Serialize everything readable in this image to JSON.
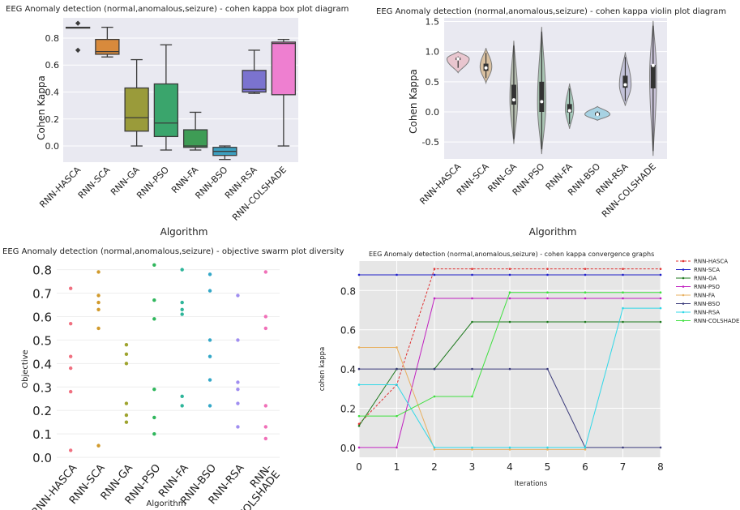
{
  "chart_data": [
    {
      "id": "box",
      "type": "box",
      "title": "EEG Anomaly detection (normal,anomalous,seizure) - cohen kappa box plot diagram",
      "xlabel": "Algorithm",
      "ylabel": "Cohen Kappa",
      "ylim": [
        -0.12,
        0.95
      ],
      "yticks": [
        0.0,
        0.2,
        0.4,
        0.6,
        0.8
      ],
      "ytick_labels": [
        "0.0",
        "0.2",
        "0.4",
        "0.6",
        "0.8"
      ],
      "categories": [
        "RNN-HASCA",
        "RNN-SCA",
        "RNN-GA",
        "RNN-PSO",
        "RNN-FA",
        "RNN-BSO",
        "RNN-RSA",
        "RNN-COLSHADE"
      ],
      "colors": [
        "#3c6fa6",
        "#d88a3c",
        "#9a9b3a",
        "#3aa56c",
        "#3e9c55",
        "#3ca0c0",
        "#7b73cf",
        "#ee7fd0"
      ],
      "boxes": [
        {
          "whislo": 0.88,
          "q1": 0.88,
          "med": 0.88,
          "q3": 0.88,
          "whishi": 0.88,
          "fliers": [
            0.91,
            0.71
          ]
        },
        {
          "whislo": 0.66,
          "q1": 0.68,
          "med": 0.7,
          "q3": 0.79,
          "whishi": 0.88,
          "fliers": []
        },
        {
          "whislo": 0.0,
          "q1": 0.11,
          "med": 0.21,
          "q3": 0.43,
          "whishi": 0.64,
          "fliers": []
        },
        {
          "whislo": -0.03,
          "q1": 0.07,
          "med": 0.17,
          "q3": 0.46,
          "whishi": 0.75,
          "fliers": []
        },
        {
          "whislo": -0.03,
          "q1": -0.01,
          "med": 0.0,
          "q3": 0.12,
          "whishi": 0.25,
          "fliers": []
        },
        {
          "whislo": -0.1,
          "q1": -0.07,
          "med": -0.04,
          "q3": -0.01,
          "whishi": 0.0,
          "fliers": []
        },
        {
          "whislo": 0.39,
          "q1": 0.4,
          "med": 0.42,
          "q3": 0.56,
          "whishi": 0.71,
          "fliers": []
        },
        {
          "whislo": 0.0,
          "q1": 0.38,
          "med": 0.76,
          "q3": 0.77,
          "whishi": 0.79,
          "fliers": []
        }
      ]
    },
    {
      "id": "violin",
      "type": "violin",
      "title": "EEG Anomaly detection (normal,anomalous,seizure) - cohen kappa violin plot diagram",
      "xlabel": "Algorithm",
      "ylabel": "Cohen Kappa",
      "ylim": [
        -0.78,
        1.56
      ],
      "yticks": [
        -0.5,
        0.0,
        0.5,
        1.0,
        1.5
      ],
      "ytick_labels": [
        "-0.5",
        "0.0",
        "0.5",
        "1.0",
        "1.5"
      ],
      "categories": [
        "RNN-HASCA",
        "RNN-SCA",
        "RNN-GA",
        "RNN-PSO",
        "RNN-FA",
        "RNN-BSO",
        "RNN-RSA",
        "RNN-COLSHADE"
      ],
      "colors": [
        "#e9c6cf",
        "#d9c0a0",
        "#b4bcae",
        "#a8c4b2",
        "#a8ccbd",
        "#a7d2e3",
        "#c3c2d9",
        "#c7c1d6"
      ],
      "violins": [
        {
          "min": 0.65,
          "max": 1.0,
          "mode": 0.88,
          "width": 0.8,
          "q1": 0.86,
          "q3": 0.9,
          "med": 0.88
        },
        {
          "min": 0.48,
          "max": 1.06,
          "mode": 0.75,
          "width": 0.42,
          "q1": 0.68,
          "q3": 0.8,
          "med": 0.73
        },
        {
          "min": -0.53,
          "max": 1.18,
          "mode": 0.22,
          "width": 0.28,
          "q1": 0.12,
          "q3": 0.45,
          "med": 0.2
        },
        {
          "min": -0.7,
          "max": 1.41,
          "mode": 0.15,
          "width": 0.3,
          "q1": 0.0,
          "q3": 0.5,
          "med": 0.17
        },
        {
          "min": -0.28,
          "max": 0.47,
          "mode": 0.05,
          "width": 0.3,
          "q1": -0.01,
          "q3": 0.13,
          "med": 0.02
        },
        {
          "min": -0.14,
          "max": 0.09,
          "mode": -0.04,
          "width": 0.9,
          "q1": -0.06,
          "q3": -0.01,
          "med": -0.04
        },
        {
          "min": 0.1,
          "max": 0.99,
          "mode": 0.45,
          "width": 0.42,
          "q1": 0.4,
          "q3": 0.6,
          "med": 0.45
        },
        {
          "min": -0.73,
          "max": 1.51,
          "mode": 0.6,
          "width": 0.25,
          "q1": 0.39,
          "q3": 0.78,
          "med": 0.77
        }
      ]
    },
    {
      "id": "swarm",
      "type": "scatter",
      "title": "EEG Anomaly detection (normal,anomalous,seizure) -  objective swarm plot diversity",
      "xlabel": "Algorithm",
      "ylabel": "Objective",
      "ylim": [
        -0.01,
        0.84
      ],
      "yticks": [
        0.0,
        0.1,
        0.2,
        0.3,
        0.4,
        0.5,
        0.6,
        0.7,
        0.8
      ],
      "ytick_labels": [
        "0.0",
        "0.1",
        "0.2",
        "0.3",
        "0.4",
        "0.5",
        "0.6",
        "0.7",
        "0.8"
      ],
      "categories": [
        "RNN-HASCA",
        "RNN-SCA",
        "RNN-GA",
        "RNN-PSO",
        "RNN-FA",
        "RNN-BSO",
        "RNN-RSA",
        "RNN-\nCOLSHADE"
      ],
      "colors": [
        "#f07080",
        "#d19a2c",
        "#9ea32e",
        "#2fb65c",
        "#2eb59a",
        "#35a8c8",
        "#a08ef0",
        "#f070b8"
      ],
      "points": [
        [
          0.72,
          0.57,
          0.43,
          0.38,
          0.28,
          0.03
        ],
        [
          0.79,
          0.69,
          0.66,
          0.63,
          0.55,
          0.05
        ],
        [
          0.48,
          0.44,
          0.4,
          0.23,
          0.18,
          0.15
        ],
        [
          0.82,
          0.67,
          0.59,
          0.29,
          0.17,
          0.1
        ],
        [
          0.8,
          0.66,
          0.63,
          0.61,
          0.26,
          0.22
        ],
        [
          0.78,
          0.71,
          0.5,
          0.43,
          0.33,
          0.22
        ],
        [
          0.69,
          0.5,
          0.32,
          0.29,
          0.23,
          0.13
        ],
        [
          0.79,
          0.6,
          0.55,
          0.22,
          0.13,
          0.08
        ]
      ]
    },
    {
      "id": "convergence",
      "type": "line",
      "title": "EEG Anomaly detection (normal,anomalous,seizure) -  cohen kappa convergence graphs",
      "xlabel": "Iterations",
      "ylabel": "cohen kappa",
      "xlim": [
        0,
        8
      ],
      "ylim": [
        -0.05,
        0.95
      ],
      "xticks": [
        0,
        1,
        2,
        3,
        4,
        5,
        6,
        7,
        8
      ],
      "xtick_labels": [
        "0",
        "1",
        "2",
        "3",
        "4",
        "5",
        "6",
        "7",
        "8"
      ],
      "yticks": [
        0.0,
        0.2,
        0.4,
        0.6,
        0.8
      ],
      "ytick_labels": [
        "0.0",
        "0.2",
        "0.4",
        "0.6",
        "0.8"
      ],
      "x": [
        0,
        1,
        2,
        3,
        4,
        5,
        6,
        7,
        8
      ],
      "series": [
        {
          "name": "RNN-HASCA",
          "color": "#e03030",
          "dash": true,
          "values": [
            0.12,
            0.32,
            0.91,
            0.91,
            0.91,
            0.91,
            0.91,
            0.91,
            0.91
          ]
        },
        {
          "name": "RNN-SCA",
          "color": "#2020c8",
          "dash": false,
          "values": [
            0.88,
            0.88,
            0.88,
            0.88,
            0.88,
            0.88,
            0.88,
            0.88,
            0.88
          ]
        },
        {
          "name": "RNN-GA",
          "color": "#1f7a1f",
          "dash": false,
          "values": [
            0.11,
            0.4,
            0.4,
            0.64,
            0.64,
            0.64,
            0.64,
            0.64,
            0.64
          ]
        },
        {
          "name": "RNN-PSO",
          "color": "#c020c0",
          "dash": false,
          "values": [
            0.0,
            0.0,
            0.76,
            0.76,
            0.76,
            0.76,
            0.76,
            0.76,
            0.76
          ]
        },
        {
          "name": "RNN-FA",
          "color": "#e8b060",
          "dash": false,
          "values": [
            0.51,
            0.51,
            -0.01,
            -0.01,
            -0.01,
            -0.01,
            -0.01,
            null,
            null
          ]
        },
        {
          "name": "RNN-BSO",
          "color": "#3a3a7a",
          "dash": false,
          "values": [
            0.4,
            0.4,
            0.4,
            0.4,
            0.4,
            0.4,
            0.0,
            0.0,
            0.0
          ]
        },
        {
          "name": "RNN-RSA",
          "color": "#30d8e8",
          "dash": false,
          "values": [
            0.32,
            0.32,
            0.0,
            0.0,
            0.0,
            0.0,
            0.0,
            0.71,
            0.71
          ]
        },
        {
          "name": "RNN-COLSHADE",
          "color": "#40e040",
          "dash": false,
          "values": [
            0.16,
            0.16,
            0.26,
            0.26,
            0.79,
            0.79,
            0.79,
            0.79,
            0.79
          ]
        }
      ]
    }
  ]
}
